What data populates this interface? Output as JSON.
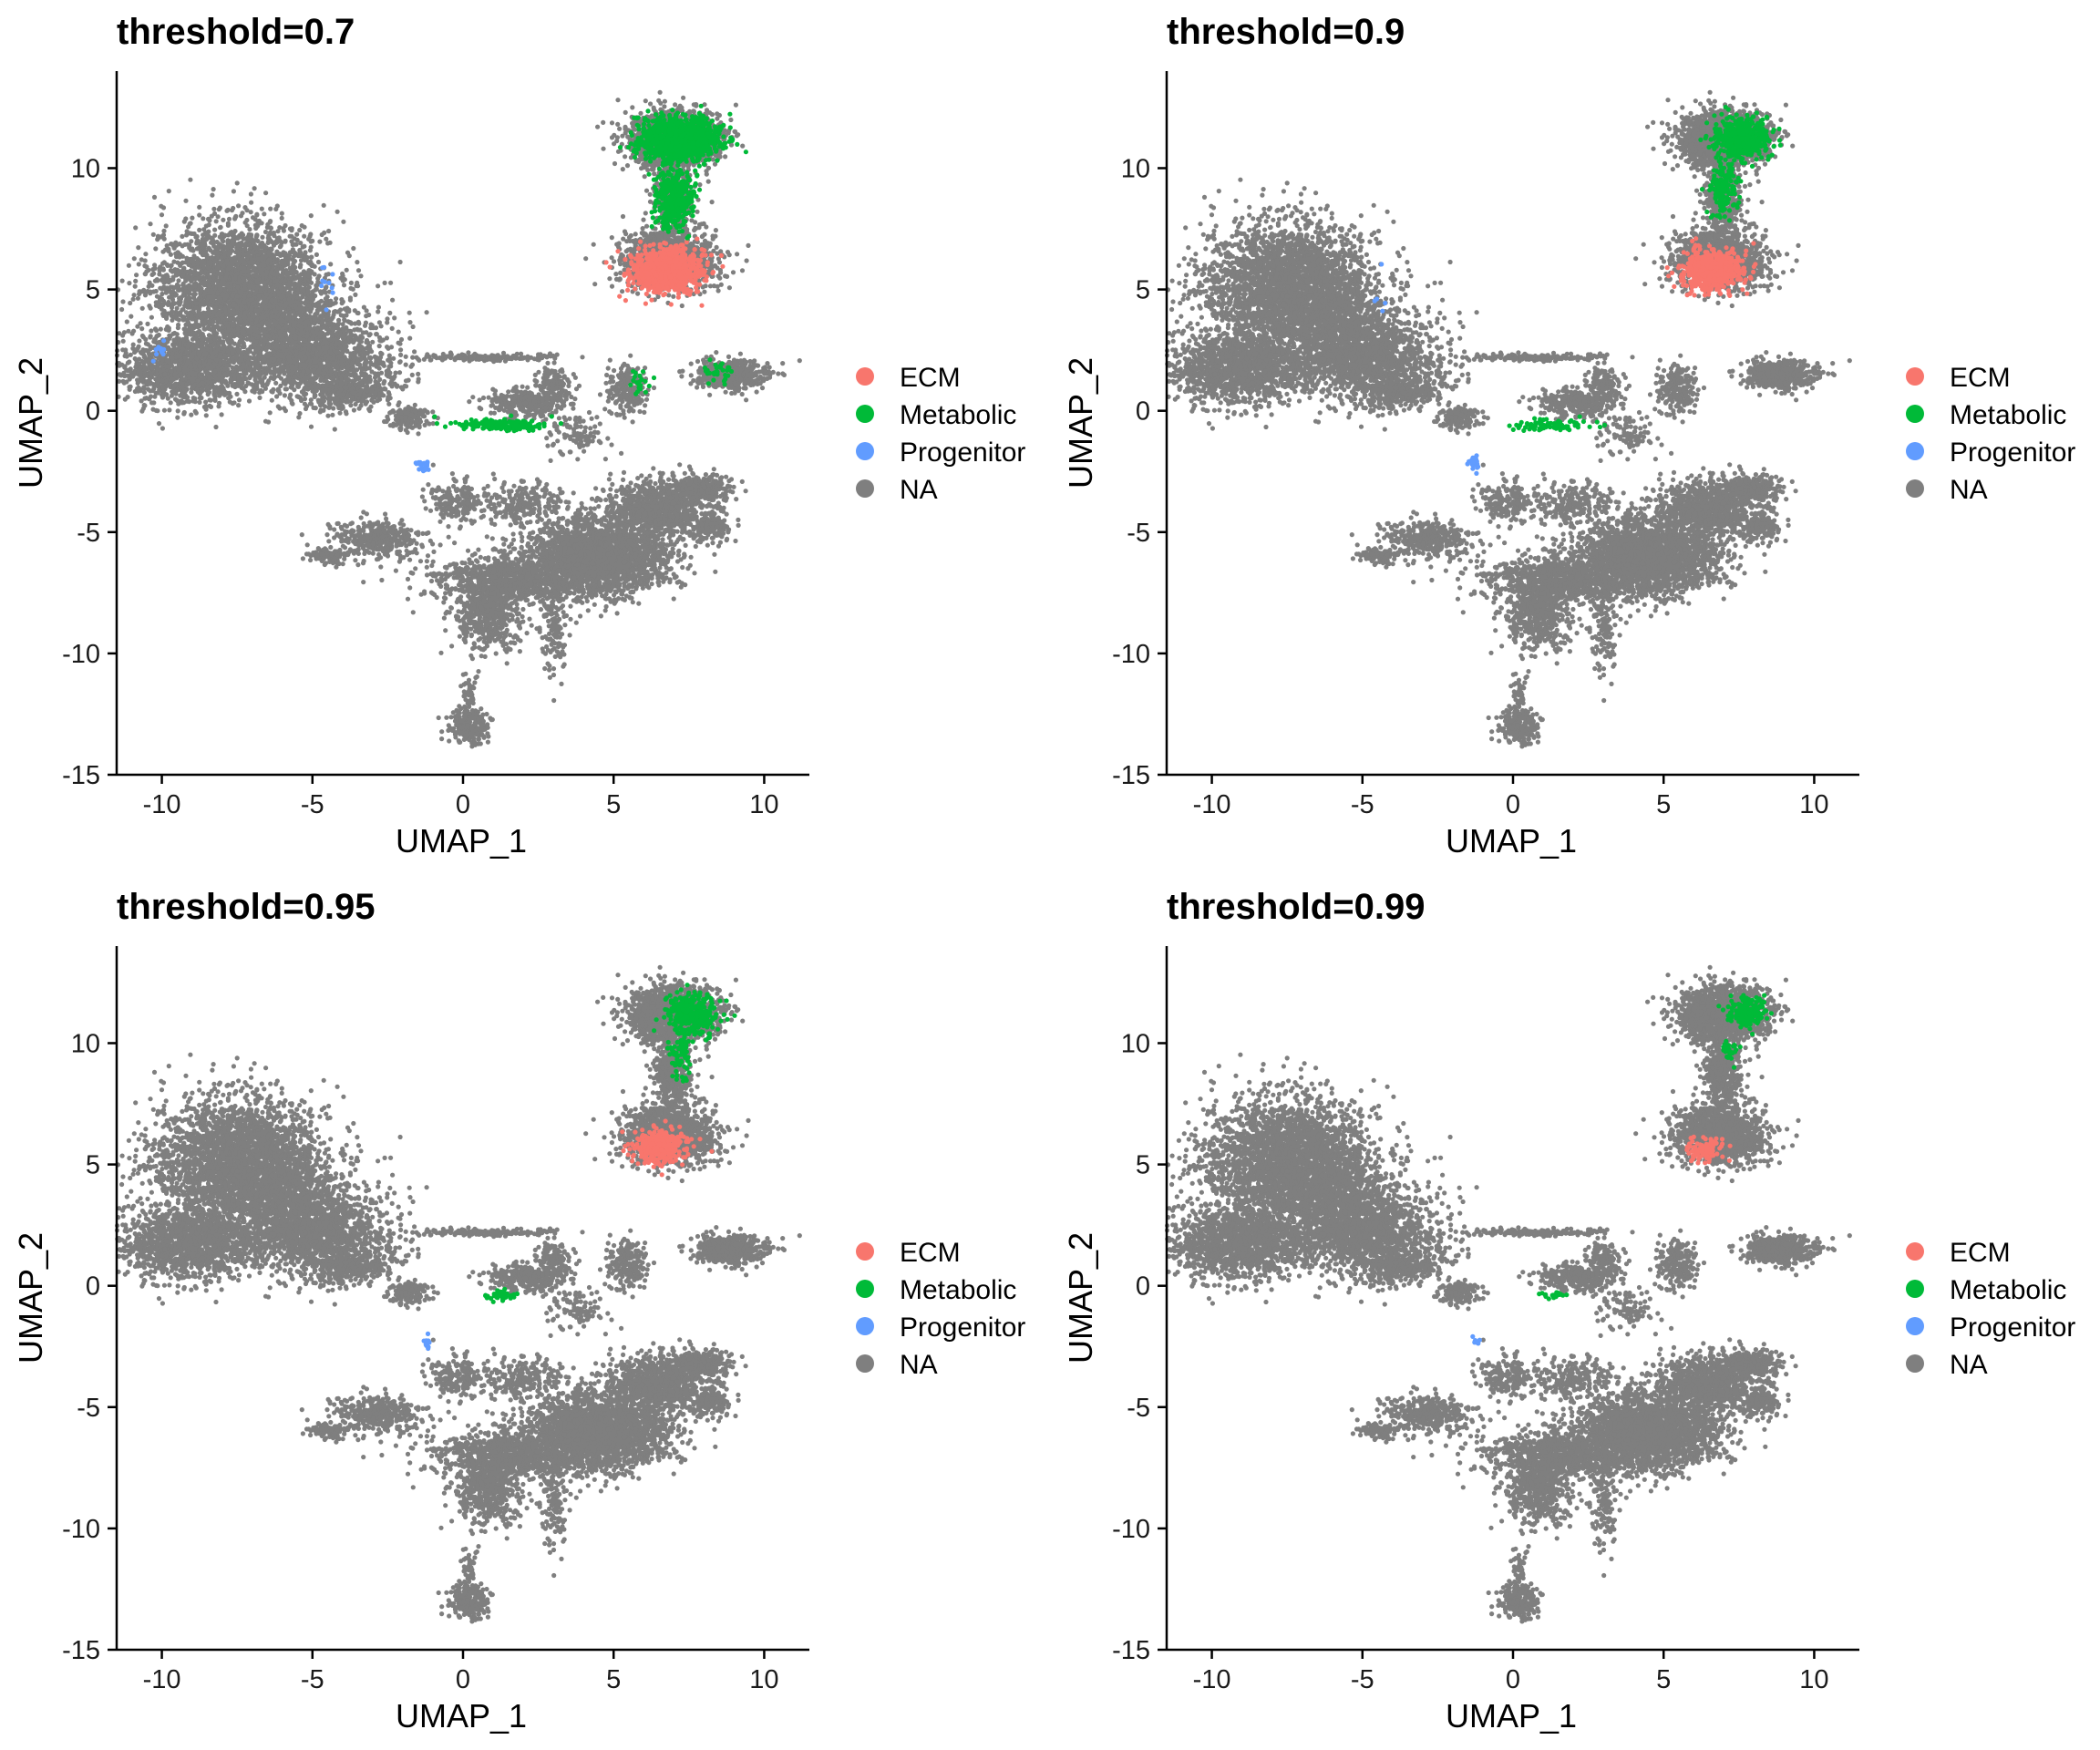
{
  "figure": {
    "legend_position": "right",
    "colors": {
      "ECM": "#F8766D",
      "Metabolic": "#00BA38",
      "Progenitor": "#619CFF",
      "NA": "#7F7F7F"
    },
    "grid": false
  },
  "chart_data": [
    {
      "type": "scatter",
      "title": "threshold=0.7",
      "xlabel": "UMAP_1",
      "ylabel": "UMAP_2",
      "xlim": [
        -11.5,
        11.5
      ],
      "ylim": [
        -15,
        14
      ],
      "xticks": [
        -10,
        -5,
        0,
        5,
        10
      ],
      "xtick_labels": [
        "-10",
        "-5",
        "0",
        "5",
        "10"
      ],
      "yticks": [
        -15,
        -10,
        -5,
        0,
        5,
        10
      ],
      "ytick_labels": [
        "-15",
        "-10",
        "-5",
        "0",
        "5",
        "10"
      ],
      "legend": [
        "ECM",
        "Metabolic",
        "Progenitor",
        "NA"
      ],
      "series": [
        {
          "name": "ECM",
          "color": "#F8766D",
          "regions": [
            [
              6.8,
              5.8,
              1.2,
              0.9,
              900
            ]
          ]
        },
        {
          "name": "Metabolic",
          "color": "#00BA38",
          "regions": [
            [
              7.2,
              11.2,
              1.3,
              0.9,
              1100
            ],
            [
              7.0,
              8.8,
              0.6,
              1.3,
              400
            ],
            [
              1.2,
              -0.6,
              1.6,
              0.25,
              160
            ],
            [
              8.5,
              1.6,
              0.5,
              0.5,
              30
            ],
            [
              5.8,
              1.2,
              0.4,
              0.6,
              20
            ]
          ]
        },
        {
          "name": "Progenitor",
          "color": "#619CFF",
          "regions": [
            [
              -1.3,
              -2.2,
              0.2,
              0.3,
              25
            ],
            [
              -10,
              2.5,
              0.3,
              0.3,
              12
            ],
            [
              -4.5,
              5,
              0.3,
              1.0,
              10
            ]
          ]
        },
        {
          "name": "NA",
          "color": "#7F7F7F",
          "regions": []
        }
      ]
    },
    {
      "type": "scatter",
      "title": "threshold=0.9",
      "xlabel": "UMAP_1",
      "ylabel": "UMAP_2",
      "xlim": [
        -11.5,
        11.5
      ],
      "ylim": [
        -15,
        14
      ],
      "xticks": [
        -10,
        -5,
        0,
        5,
        10
      ],
      "xtick_labels": [
        "-10",
        "-5",
        "0",
        "5",
        "10"
      ],
      "yticks": [
        -15,
        -10,
        -5,
        0,
        5,
        10
      ],
      "ytick_labels": [
        "-15",
        "-10",
        "-5",
        "0",
        "5",
        "10"
      ],
      "legend": [
        "ECM",
        "Metabolic",
        "Progenitor",
        "NA"
      ],
      "series": [
        {
          "name": "ECM",
          "color": "#F8766D",
          "regions": [
            [
              6.6,
              5.8,
              1.0,
              0.8,
              600
            ]
          ]
        },
        {
          "name": "Metabolic",
          "color": "#00BA38",
          "regions": [
            [
              7.6,
              11.2,
              0.9,
              0.8,
              500
            ],
            [
              7.0,
              9.2,
              0.5,
              1.0,
              150
            ],
            [
              1.2,
              -0.6,
              1.2,
              0.25,
              80
            ]
          ]
        },
        {
          "name": "Progenitor",
          "color": "#619CFF",
          "regions": [
            [
              -1.3,
              -2.2,
              0.2,
              0.3,
              18
            ],
            [
              -4.5,
              5,
              0.3,
              1.0,
              5
            ]
          ]
        },
        {
          "name": "NA",
          "color": "#7F7F7F",
          "regions": []
        }
      ]
    },
    {
      "type": "scatter",
      "title": "threshold=0.95",
      "xlabel": "UMAP_1",
      "ylabel": "UMAP_2",
      "xlim": [
        -11.5,
        11.5
      ],
      "ylim": [
        -15,
        14
      ],
      "xticks": [
        -10,
        -5,
        0,
        5,
        10
      ],
      "xtick_labels": [
        "-10",
        "-5",
        "0",
        "5",
        "10"
      ],
      "yticks": [
        -15,
        -10,
        -5,
        0,
        5,
        10
      ],
      "ytick_labels": [
        "-15",
        "-10",
        "-5",
        "0",
        "5",
        "10"
      ],
      "legend": [
        "ECM",
        "Metabolic",
        "Progenitor",
        "NA"
      ],
      "series": [
        {
          "name": "ECM",
          "color": "#F8766D",
          "regions": [
            [
              6.5,
              5.7,
              0.9,
              0.7,
              350
            ]
          ]
        },
        {
          "name": "Metabolic",
          "color": "#00BA38",
          "regions": [
            [
              7.6,
              11.2,
              0.8,
              0.8,
              380
            ],
            [
              7.2,
              9.5,
              0.4,
              0.8,
              80
            ],
            [
              1.3,
              -0.4,
              0.6,
              0.2,
              40
            ]
          ]
        },
        {
          "name": "Progenitor",
          "color": "#619CFF",
          "regions": [
            [
              -1.2,
              -2.3,
              0.15,
              0.3,
              12
            ]
          ]
        },
        {
          "name": "NA",
          "color": "#7F7F7F",
          "regions": []
        }
      ]
    },
    {
      "type": "scatter",
      "title": "threshold=0.99",
      "xlabel": "UMAP_1",
      "ylabel": "UMAP_2",
      "xlim": [
        -11.5,
        11.5
      ],
      "ylim": [
        -15,
        14
      ],
      "xticks": [
        -10,
        -5,
        0,
        5,
        10
      ],
      "xtick_labels": [
        "-10",
        "-5",
        "0",
        "5",
        "10"
      ],
      "yticks": [
        -15,
        -10,
        -5,
        0,
        5,
        10
      ],
      "ytick_labels": [
        "-15",
        "-10",
        "-5",
        "0",
        "5",
        "10"
      ],
      "legend": [
        "ECM",
        "Metabolic",
        "Progenitor",
        "NA"
      ],
      "series": [
        {
          "name": "ECM",
          "color": "#F8766D",
          "regions": [
            [
              6.4,
              5.6,
              0.6,
              0.5,
              110
            ]
          ]
        },
        {
          "name": "Metabolic",
          "color": "#00BA38",
          "regions": [
            [
              7.8,
              11.3,
              0.6,
              0.6,
              200
            ],
            [
              7.2,
              9.8,
              0.3,
              0.5,
              25
            ],
            [
              1.3,
              -0.4,
              0.5,
              0.15,
              20
            ]
          ]
        },
        {
          "name": "Progenitor",
          "color": "#619CFF",
          "regions": [
            [
              -1.2,
              -2.3,
              0.12,
              0.25,
              8
            ]
          ]
        },
        {
          "name": "NA",
          "color": "#7F7F7F",
          "regions": []
        }
      ]
    }
  ],
  "umap_clusters": [
    [
      -7.5,
      5.2,
      2.6,
      2.4,
      2400
    ],
    [
      -9.2,
      1.8,
      2.0,
      1.3,
      1400
    ],
    [
      -5.0,
      2.2,
      2.4,
      1.6,
      1400
    ],
    [
      -6.0,
      4.0,
      2.0,
      2.0,
      900
    ],
    [
      -3.8,
      0.8,
      1.2,
      0.6,
      300
    ],
    [
      -1.8,
      -0.3,
      0.6,
      0.4,
      150
    ],
    [
      0.8,
      2.2,
      2.0,
      0.15,
      160
    ],
    [
      2.2,
      0.3,
      1.2,
      0.5,
      350
    ],
    [
      3.0,
      1.1,
      0.6,
      0.6,
      120
    ],
    [
      6.9,
      6.2,
      1.4,
      1.1,
      1300
    ],
    [
      7.0,
      11.2,
      1.4,
      1.0,
      1400
    ],
    [
      7.0,
      8.8,
      0.6,
      1.4,
      400
    ],
    [
      8.8,
      1.5,
      1.1,
      0.55,
      500
    ],
    [
      5.5,
      0.8,
      0.6,
      0.9,
      200
    ],
    [
      4.5,
      -6.0,
      2.2,
      1.4,
      2200
    ],
    [
      6.5,
      -4.0,
      1.5,
      1.0,
      900
    ],
    [
      8.2,
      -4.8,
      0.6,
      0.5,
      150
    ],
    [
      1.5,
      -7.0,
      2.3,
      1.0,
      900
    ],
    [
      0.8,
      -8.5,
      1.0,
      1.4,
      450
    ],
    [
      3.0,
      -9.0,
      0.4,
      1.4,
      120
    ],
    [
      -2.8,
      -5.3,
      1.3,
      0.7,
      350
    ],
    [
      -4.5,
      -6.0,
      0.6,
      0.3,
      90
    ],
    [
      -0.3,
      -3.8,
      0.8,
      0.8,
      180
    ],
    [
      2.0,
      -3.8,
      1.2,
      0.8,
      220
    ],
    [
      0.2,
      -13.0,
      0.6,
      0.6,
      250
    ],
    [
      0.2,
      -11.5,
      0.2,
      0.8,
      40
    ],
    [
      3.8,
      -1.0,
      0.9,
      0.8,
      100
    ],
    [
      8.0,
      -3.2,
      0.8,
      0.5,
      220
    ]
  ]
}
